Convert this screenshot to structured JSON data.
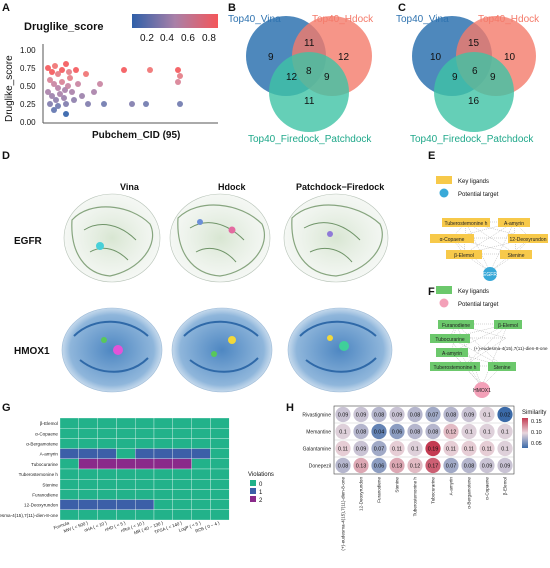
{
  "panels": {
    "A": "A",
    "B": "B",
    "C": "C",
    "D": "D",
    "E": "E",
    "F": "F",
    "G": "G",
    "H": "H"
  },
  "panel_a": {
    "title": "Druglike_score",
    "ylabel": "Druglike_score",
    "xlabel": "Pubchem_CID (95)",
    "yticks": [
      "1.00",
      "0.75",
      "0.50",
      "0.25",
      "0.00"
    ],
    "colorbar_ticks": [
      "0.2",
      "0.4",
      "0.6",
      "0.8"
    ],
    "colors": {
      "low": "#2f5fa8",
      "mid": "#a980a8",
      "high": "#f4565a"
    }
  },
  "panel_b": {
    "set_vina": "Top40_Vina",
    "set_hdock": "Top40_Hdock",
    "set_patch": "Top40_Firedock_Patchdock",
    "vina_only": "9",
    "hdock_only": "12",
    "patch_only": "11",
    "vina_hdock": "11",
    "vina_patch": "12",
    "hdock_patch": "9",
    "all_three": "8"
  },
  "panel_c": {
    "set_vina": "Top40_Vina",
    "set_hdock": "Top40_Hdock",
    "set_patch": "Top40_Firedock_Patchdock",
    "vina_only": "10",
    "hdock_only": "10",
    "patch_only": "16",
    "vina_hdock": "15",
    "vina_patch": "9",
    "hdock_patch": "9",
    "all_three": "6"
  },
  "panel_d": {
    "methods": [
      "Vina",
      "Hdock",
      "Patchdock−Firedock"
    ],
    "proteins": [
      "EGFR",
      "HMOX1"
    ]
  },
  "panel_e": {
    "legend_ligand": "Key ligands",
    "legend_target": "Potential target",
    "target": "EGFR",
    "nodes": [
      "Tuberostemonine h",
      "A-amyrin",
      "α-Copaene",
      "12-Deoxyrundon",
      "β-Elemol",
      "Stenine"
    ],
    "colors": {
      "ligand": "#f7c94a",
      "target": "#39a9d8"
    }
  },
  "panel_f": {
    "legend_ligand": "Key ligands",
    "legend_target": "Potential target",
    "target": "HMOX1",
    "nodes": [
      "Furanodiene",
      "β-Elemol",
      "Tubocurarine",
      "(+)-eudesma-4(15),7(11)-dien-8-one",
      "A-amyrin",
      "Tuberostemonine h",
      "Stenine"
    ],
    "colors": {
      "ligand": "#6cc86c",
      "target": "#f3a0b8"
    }
  },
  "panel_g": {
    "rows": [
      "β-Elemol",
      "α-Copaene",
      "α-Bergamotene",
      "A-amyrin",
      "Tubocurarine",
      "Tuberostemonine h",
      "Stenine",
      "Furanodiene",
      "12-Deoxyrundon",
      "(+)-eudesma-4(15),7(11)-dien-8-one"
    ],
    "columns": [
      "Formula",
      "MW ( < 500 )",
      "nHA ( < 10 )",
      "nHD ( < 5 )",
      "nRot ( < 10 )",
      "MR ( 40 ~ 130 )",
      "TPSA ( < 140 )",
      "LogP ( < 5 )",
      "RO5 ( 0 ~ 4 )"
    ],
    "legend_title": "Violations",
    "legend_items": [
      "0",
      "1",
      "2"
    ],
    "colors": {
      "ok": "#22b28a",
      "warn": "#3c5fa8",
      "bad": "#8a2a8a"
    }
  },
  "panel_h": {
    "rows": [
      "Rivastigmine",
      "Memantine",
      "Galantamine",
      "Donepezil"
    ],
    "columns": [
      "(+)-eudesma-4(15),7(11)-dien-8-one",
      "12-Deoxyrundon",
      "Furanodiene",
      "Stenine",
      "Tuberostemonine h",
      "Tubocurarine",
      "A-amyrin",
      "α-Bergamotene",
      "α-Copaene",
      "β-Elemol"
    ],
    "values": [
      [
        "0.09",
        "0.09",
        "0.08",
        "0.09",
        "0.08",
        "0.07",
        "0.08",
        "0.09",
        "0.1",
        "0.02"
      ],
      [
        "0.1",
        "0.08",
        "0.04",
        "0.06",
        "0.08",
        "0.08",
        "0.12",
        "0.1",
        "0.1",
        "0.1"
      ],
      [
        "0.11",
        "0.09",
        "0.07",
        "0.11",
        "0.1",
        "0.19",
        "0.11",
        "0.11",
        "0.11",
        "0.1"
      ],
      [
        "0.08",
        "0.13",
        "0.06",
        "0.13",
        "0.12",
        "0.17",
        "0.07",
        "0.08",
        "0.09",
        "0.09"
      ]
    ],
    "legend_title": "Similarity",
    "legend_ticks": [
      "0.15",
      "0.10",
      "0.05"
    ],
    "colors": {
      "low": "#3b6aa8",
      "high": "#c43b52"
    }
  }
}
